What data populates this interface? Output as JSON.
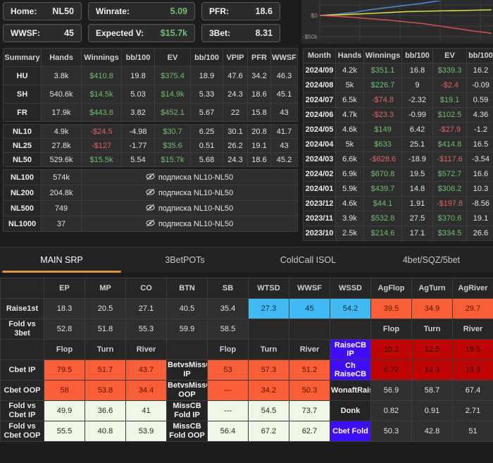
{
  "colors": {
    "green": "#6cc06c",
    "red": "#e06161",
    "accent_orange": "#e8932f",
    "cell_blue": "#41b9f2",
    "cell_orange": "#f95e36",
    "cell_dark_red": "#c10505",
    "cell_indigo": "#3f0cf6",
    "cell_light": "#eef6e7"
  },
  "top_stats": {
    "rows": [
      [
        {
          "id": "home",
          "label": "Home:",
          "value": "NL50",
          "color": ""
        },
        {
          "id": "winrate",
          "label": "Winrate:",
          "value": "5.09",
          "color": "green"
        },
        {
          "id": "pfr",
          "label": "PFR:",
          "value": "18.6",
          "color": ""
        }
      ],
      [
        {
          "id": "wwsf",
          "label": "WWSF:",
          "value": "45",
          "color": ""
        },
        {
          "id": "expected-v",
          "label": "Expected V:",
          "value": "$15.7k",
          "color": "green"
        },
        {
          "id": "3bet",
          "label": "3Bet:",
          "value": "8.31",
          "color": ""
        }
      ]
    ]
  },
  "chart_data": {
    "type": "line",
    "title": "",
    "xlabel": "",
    "ylabel": "",
    "ylim": [
      -55000,
      33000
    ],
    "grid": true,
    "legend": "none",
    "y_ticks": [
      {
        "label": "$0",
        "value": 0
      },
      {
        "label": "-$50k",
        "value": -50000
      }
    ],
    "series": [
      {
        "name": "winnings",
        "color": "#4a86d8",
        "points": [
          [
            0,
            0
          ],
          [
            0.1,
            3000
          ],
          [
            0.2,
            7500
          ],
          [
            0.3,
            14000
          ],
          [
            0.4,
            19000
          ],
          [
            0.5,
            24000
          ],
          [
            0.6,
            29000
          ],
          [
            0.7,
            35500
          ],
          [
            0.78,
            41000
          ]
        ]
      },
      {
        "name": "ev",
        "color": "#d6da3f",
        "points": [
          [
            0,
            0
          ],
          [
            0.1,
            1500
          ],
          [
            0.2,
            3200
          ],
          [
            0.3,
            5000
          ],
          [
            0.4,
            7000
          ],
          [
            0.5,
            9000
          ],
          [
            0.6,
            10000
          ],
          [
            0.7,
            11000
          ],
          [
            0.8,
            11500
          ],
          [
            0.9,
            12500
          ],
          [
            1,
            13500
          ]
        ]
      },
      {
        "name": "red-line",
        "color": "#d04c4c",
        "points": [
          [
            0,
            0
          ],
          [
            0.1,
            -2000
          ],
          [
            0.2,
            -4500
          ],
          [
            0.3,
            -8000
          ],
          [
            0.4,
            -11000
          ],
          [
            0.5,
            -15000
          ],
          [
            0.6,
            -19000
          ],
          [
            0.7,
            -25000
          ],
          [
            0.8,
            -31000
          ],
          [
            0.9,
            -37000
          ],
          [
            1,
            -42000
          ]
        ]
      }
    ]
  },
  "summary_table": {
    "headers": [
      "Summary",
      "Hands",
      "Winnings",
      "bb/100",
      "EV",
      "bb/100",
      "VPIP",
      "PFR",
      "WWSF"
    ],
    "groups": [
      {
        "rows": [
          {
            "label": "HU",
            "cells": [
              {
                "t": "3.8k"
              },
              {
                "t": "$410.8",
                "c": "g"
              },
              {
                "t": "19.8"
              },
              {
                "t": "$375.4",
                "c": "g"
              },
              {
                "t": "18.9"
              },
              {
                "t": "47.6"
              },
              {
                "t": "34.2"
              },
              {
                "t": "46.3"
              }
            ]
          },
          {
            "label": "SH",
            "cells": [
              {
                "t": "540.6k"
              },
              {
                "t": "$14.5k",
                "c": "g"
              },
              {
                "t": "5.03"
              },
              {
                "t": "$14.9k",
                "c": "g"
              },
              {
                "t": "5.33"
              },
              {
                "t": "24.3"
              },
              {
                "t": "18.6"
              },
              {
                "t": "45.1"
              }
            ]
          },
          {
            "label": "FR",
            "cells": [
              {
                "t": "17.9k"
              },
              {
                "t": "$443.8",
                "c": "g"
              },
              {
                "t": "3.82"
              },
              {
                "t": "$452.1",
                "c": "g"
              },
              {
                "t": "5.67"
              },
              {
                "t": "22"
              },
              {
                "t": "15.8"
              },
              {
                "t": "43"
              }
            ]
          }
        ]
      },
      {
        "rows": [
          {
            "label": "NL10",
            "cells": [
              {
                "t": "4.9k"
              },
              {
                "t": "-$24.5",
                "c": "r"
              },
              {
                "t": "-4.98"
              },
              {
                "t": "$30.7",
                "c": "g"
              },
              {
                "t": "6.25"
              },
              {
                "t": "30.1"
              },
              {
                "t": "20.8"
              },
              {
                "t": "41.7"
              }
            ]
          },
          {
            "label": "NL25",
            "cells": [
              {
                "t": "27.8k"
              },
              {
                "t": "-$127",
                "c": "r"
              },
              {
                "t": "-1.77"
              },
              {
                "t": "$35.6",
                "c": "g"
              },
              {
                "t": "0.51"
              },
              {
                "t": "26.2"
              },
              {
                "t": "19.1"
              },
              {
                "t": "43"
              }
            ]
          },
          {
            "label": "NL50",
            "cells": [
              {
                "t": "529.6k"
              },
              {
                "t": "$15.5k",
                "c": "g"
              },
              {
                "t": "5.54"
              },
              {
                "t": "$15.7k",
                "c": "g"
              },
              {
                "t": "5.68"
              },
              {
                "t": "24.3"
              },
              {
                "t": "18.6"
              },
              {
                "t": "45.2"
              }
            ]
          }
        ]
      }
    ],
    "locked_rows": [
      {
        "label": "NL100",
        "hands": "574k",
        "notice": "подписка NL10-NL50"
      },
      {
        "label": "NL200",
        "hands": "204.8k",
        "notice": "подписка NL10-NL50"
      },
      {
        "label": "NL500",
        "hands": "749",
        "notice": "подписка NL10-NL50"
      },
      {
        "label": "NL1000",
        "hands": "37",
        "notice": "подписка NL10-NL50"
      }
    ],
    "lock_icon": "eye-slash"
  },
  "monthly_table": {
    "headers": [
      "Month",
      "Hands",
      "Winnings",
      "bb/100",
      "EV",
      "bb/100"
    ],
    "rows": [
      {
        "label": "2024/09",
        "cells": [
          {
            "t": "4.2k"
          },
          {
            "t": "$351.1",
            "c": "g"
          },
          {
            "t": "16.8"
          },
          {
            "t": "$339.3",
            "c": "g"
          },
          {
            "t": "16.2"
          }
        ]
      },
      {
        "label": "2024/08",
        "cells": [
          {
            "t": "5k"
          },
          {
            "t": "$226.7",
            "c": "g"
          },
          {
            "t": "9"
          },
          {
            "t": "-$2.4",
            "c": "r"
          },
          {
            "t": "-0.09"
          }
        ]
      },
      {
        "label": "2024/07",
        "cells": [
          {
            "t": "6.5k"
          },
          {
            "t": "-$74.8",
            "c": "r"
          },
          {
            "t": "-2.32"
          },
          {
            "t": "$19.1",
            "c": "g"
          },
          {
            "t": "0.59"
          }
        ]
      },
      {
        "label": "2024/06",
        "cells": [
          {
            "t": "4.7k"
          },
          {
            "t": "-$23.3",
            "c": "r"
          },
          {
            "t": "-0.99"
          },
          {
            "t": "$102.5",
            "c": "g"
          },
          {
            "t": "4.36"
          }
        ]
      },
      {
        "label": "2024/05",
        "cells": [
          {
            "t": "4.6k"
          },
          {
            "t": "$149",
            "c": "g"
          },
          {
            "t": "6.42"
          },
          {
            "t": "-$27.9",
            "c": "r"
          },
          {
            "t": "-1.2"
          }
        ]
      },
      {
        "label": "2024/04",
        "cells": [
          {
            "t": "5k"
          },
          {
            "t": "$633",
            "c": "g"
          },
          {
            "t": "25.1"
          },
          {
            "t": "$414.8",
            "c": "g"
          },
          {
            "t": "16.5"
          }
        ]
      },
      {
        "label": "2024/03",
        "cells": [
          {
            "t": "6.6k"
          },
          {
            "t": "-$628.6",
            "c": "r"
          },
          {
            "t": "-18.9"
          },
          {
            "t": "-$117.6",
            "c": "r"
          },
          {
            "t": "-3.54"
          }
        ]
      },
      {
        "label": "2024/02",
        "cells": [
          {
            "t": "6.9k"
          },
          {
            "t": "$670.8",
            "c": "g"
          },
          {
            "t": "19.5"
          },
          {
            "t": "$572.7",
            "c": "g"
          },
          {
            "t": "16.6"
          }
        ]
      },
      {
        "label": "2024/01",
        "cells": [
          {
            "t": "5.9k"
          },
          {
            "t": "$439.7",
            "c": "g"
          },
          {
            "t": "14.8"
          },
          {
            "t": "$306.2",
            "c": "g"
          },
          {
            "t": "10.3"
          }
        ]
      },
      {
        "label": "2023/12",
        "cells": [
          {
            "t": "4.6k"
          },
          {
            "t": "$44.1",
            "c": "g"
          },
          {
            "t": "1.91"
          },
          {
            "t": "-$197.8",
            "c": "r"
          },
          {
            "t": "-8.56"
          }
        ]
      },
      {
        "label": "2023/11",
        "cells": [
          {
            "t": "3.9k"
          },
          {
            "t": "$532.8",
            "c": "g"
          },
          {
            "t": "27.5"
          },
          {
            "t": "$370.6",
            "c": "g"
          },
          {
            "t": "19.1"
          }
        ]
      },
      {
        "label": "2023/10",
        "cells": [
          {
            "t": "2.5k"
          },
          {
            "t": "$214.6",
            "c": "g"
          },
          {
            "t": "17.1"
          },
          {
            "t": "$334.5",
            "c": "g"
          },
          {
            "t": "26.6"
          }
        ]
      }
    ]
  },
  "tabs": [
    {
      "id": "main-srp",
      "label": "MAIN SRP",
      "active": true
    },
    {
      "id": "3betpots",
      "label": "3BetPOTs",
      "active": false
    },
    {
      "id": "coldcall-isol",
      "label": "ColdCall ISOL",
      "active": false
    },
    {
      "id": "4bet-sqz-5bet",
      "label": "4bet/SQZ/5bet",
      "active": false
    }
  ],
  "positions_table": {
    "rows": [
      [
        {
          "t": "",
          "s": "h"
        },
        {
          "t": "EP",
          "s": "h"
        },
        {
          "t": "MP",
          "s": "h"
        },
        {
          "t": "CO",
          "s": "h"
        },
        {
          "t": "BTN",
          "s": "h"
        },
        {
          "t": "SB",
          "s": "h"
        },
        {
          "t": "WTSD",
          "s": "h"
        },
        {
          "t": "WWSF",
          "s": "h"
        },
        {
          "t": "WSSD",
          "s": "h"
        },
        {
          "t": "AgFlop",
          "s": "h"
        },
        {
          "t": "AgTurn",
          "s": "h"
        },
        {
          "t": "AgRiver",
          "s": "h"
        }
      ],
      [
        {
          "t": "Raise1st",
          "s": "rl"
        },
        {
          "t": "18.3",
          "s": "n"
        },
        {
          "t": "20.5",
          "s": "n"
        },
        {
          "t": "27.1",
          "s": "n"
        },
        {
          "t": "40.5",
          "s": "n"
        },
        {
          "t": "35.4",
          "s": "n"
        },
        {
          "t": "27.3",
          "s": "blue"
        },
        {
          "t": "45",
          "s": "blue"
        },
        {
          "t": "54.2",
          "s": "blue"
        },
        {
          "t": "39.5",
          "s": "or"
        },
        {
          "t": "34.9",
          "s": "or"
        },
        {
          "t": "29.7",
          "s": "or"
        }
      ],
      [
        {
          "t": "Fold vs 3bet",
          "s": "rl"
        },
        {
          "t": "52.8",
          "s": "n"
        },
        {
          "t": "51.8",
          "s": "n"
        },
        {
          "t": "55.3",
          "s": "n"
        },
        {
          "t": "59.9",
          "s": "n"
        },
        {
          "t": "58.5",
          "s": "n"
        },
        {
          "t": "",
          "s": "e"
        },
        {
          "t": "",
          "s": "e"
        },
        {
          "t": "",
          "s": "e"
        },
        {
          "t": "Flop",
          "s": "h"
        },
        {
          "t": "Turn",
          "s": "h"
        },
        {
          "t": "River",
          "s": "h"
        }
      ],
      [
        {
          "t": "",
          "s": "rl"
        },
        {
          "t": "Flop",
          "s": "h"
        },
        {
          "t": "Turn",
          "s": "h"
        },
        {
          "t": "River",
          "s": "h"
        },
        {
          "t": "",
          "s": "e"
        },
        {
          "t": "Flop",
          "s": "h"
        },
        {
          "t": "Turn",
          "s": "h"
        },
        {
          "t": "River",
          "s": "h"
        },
        {
          "t": "RaiseCB IP",
          "s": "bl"
        },
        {
          "t": "10.2",
          "s": "dr"
        },
        {
          "t": "12.5",
          "s": "dr"
        },
        {
          "t": "19.5",
          "s": "dr"
        }
      ],
      [
        {
          "t": "Cbet IP",
          "s": "rl"
        },
        {
          "t": "79.5",
          "s": "or"
        },
        {
          "t": "51.7",
          "s": "or"
        },
        {
          "t": "43.7",
          "s": "or"
        },
        {
          "t": "BetvsMissCB IP",
          "s": "lab"
        },
        {
          "t": "53",
          "s": "or"
        },
        {
          "t": "57.3",
          "s": "or"
        },
        {
          "t": "51.2",
          "s": "or"
        },
        {
          "t": "Ch RaiseCB",
          "s": "bl"
        },
        {
          "t": "6.72",
          "s": "dr"
        },
        {
          "t": "12.3",
          "s": "dr"
        },
        {
          "t": "13.9",
          "s": "dr"
        }
      ],
      [
        {
          "t": "Cbet OOP",
          "s": "rl"
        },
        {
          "t": "58",
          "s": "or"
        },
        {
          "t": "53.8",
          "s": "or"
        },
        {
          "t": "34.4",
          "s": "or"
        },
        {
          "t": "BetvsMissCB OOP",
          "s": "lab"
        },
        {
          "t": "---",
          "s": "or"
        },
        {
          "t": "34.2",
          "s": "or"
        },
        {
          "t": "50.3",
          "s": "or"
        },
        {
          "t": "WonaftRaise",
          "s": "lab"
        },
        {
          "t": "56.9",
          "s": "n"
        },
        {
          "t": "58.7",
          "s": "n"
        },
        {
          "t": "67.4",
          "s": "n"
        }
      ],
      [
        {
          "t": "Fold vs Cbet IP",
          "s": "rl"
        },
        {
          "t": "49.9",
          "s": "lt"
        },
        {
          "t": "36.6",
          "s": "lt"
        },
        {
          "t": "41",
          "s": "lt"
        },
        {
          "t": "MissCB Fold IP",
          "s": "lab"
        },
        {
          "t": "---",
          "s": "lt"
        },
        {
          "t": "54.5",
          "s": "lt"
        },
        {
          "t": "73.7",
          "s": "lt"
        },
        {
          "t": "Donk",
          "s": "lab"
        },
        {
          "t": "0.82",
          "s": "n"
        },
        {
          "t": "0.91",
          "s": "n"
        },
        {
          "t": "2.71",
          "s": "n"
        }
      ],
      [
        {
          "t": "Fold vs Cbet OOP",
          "s": "rl"
        },
        {
          "t": "55.5",
          "s": "lt"
        },
        {
          "t": "40.8",
          "s": "lt"
        },
        {
          "t": "53.9",
          "s": "lt"
        },
        {
          "t": "MissCB Fold OOP",
          "s": "lab"
        },
        {
          "t": "56.4",
          "s": "lt"
        },
        {
          "t": "67.2",
          "s": "lt"
        },
        {
          "t": "62.7",
          "s": "lt"
        },
        {
          "t": "Cbet Fold",
          "s": "bl"
        },
        {
          "t": "50.3",
          "s": "n"
        },
        {
          "t": "42.8",
          "s": "n"
        },
        {
          "t": "51",
          "s": "n"
        }
      ]
    ]
  }
}
